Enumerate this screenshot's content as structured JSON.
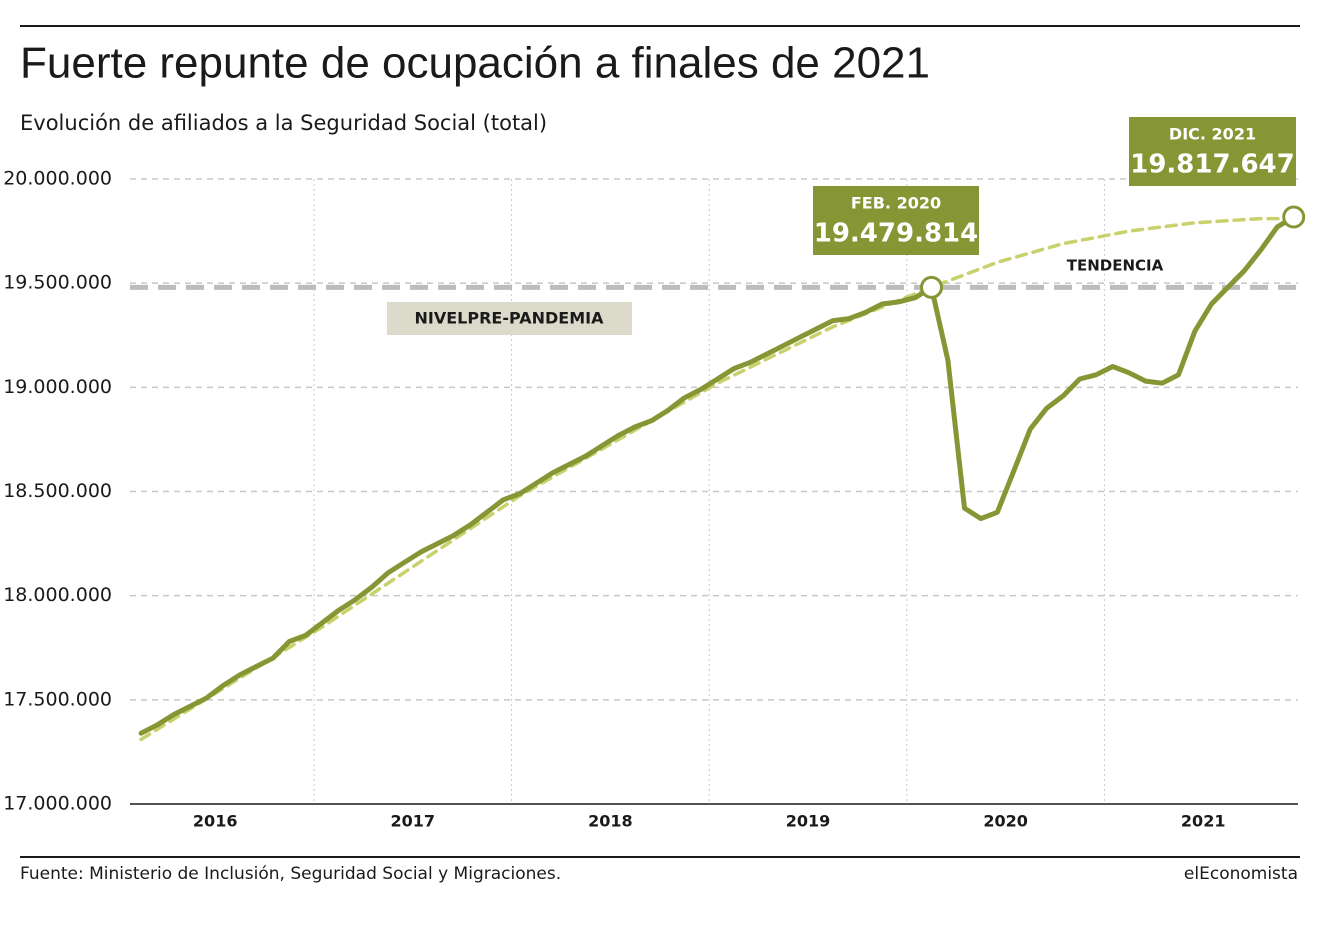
{
  "chart_data": {
    "type": "line",
    "title": "Fuerte repunte de ocupación a finales de 2021",
    "subtitle": "Evolución de afiliados a la Seguridad Social (total)",
    "source": "Fuente: Ministerio de Inclusión, Seguridad Social y Migraciones.",
    "brand": "elEconomista",
    "xlim": [
      2016,
      2022
    ],
    "xticks": [
      {
        "value": 2016.5,
        "label": "2016"
      },
      {
        "value": 2017.5,
        "label": "2017"
      },
      {
        "value": 2018.5,
        "label": "2018"
      },
      {
        "value": 2019.5,
        "label": "2019"
      },
      {
        "value": 2020.5,
        "label": "2020"
      },
      {
        "value": 2021.5,
        "label": "2021"
      }
    ],
    "ylim": [
      17000000,
      20000000
    ],
    "yticks": [
      {
        "value": 17000000,
        "label": "17.000.000"
      },
      {
        "value": 17500000,
        "label": "17.500.000"
      },
      {
        "value": 18000000,
        "label": "18.000.000"
      },
      {
        "value": 18500000,
        "label": "18.500.000"
      },
      {
        "value": 19000000,
        "label": "19.000.000"
      },
      {
        "value": 19500000,
        "label": "19.500.000"
      },
      {
        "value": 20000000,
        "label": "20.000.000"
      }
    ],
    "grid": true,
    "series": [
      {
        "name": "Afiliados",
        "color": "#879634",
        "x": [
          2016.125,
          2016.208,
          2016.292,
          2016.375,
          2016.458,
          2016.542,
          2016.625,
          2016.708,
          2016.792,
          2016.875,
          2016.958,
          2017.042,
          2017.125,
          2017.208,
          2017.292,
          2017.375,
          2017.458,
          2017.542,
          2017.625,
          2017.708,
          2017.792,
          2017.875,
          2017.958,
          2018.042,
          2018.125,
          2018.208,
          2018.292,
          2018.375,
          2018.458,
          2018.542,
          2018.625,
          2018.708,
          2018.792,
          2018.875,
          2018.958,
          2019.042,
          2019.125,
          2019.208,
          2019.292,
          2019.375,
          2019.458,
          2019.542,
          2019.625,
          2019.708,
          2019.792,
          2019.875,
          2019.958,
          2020.042,
          2020.125,
          2020.208,
          2020.292,
          2020.375,
          2020.458,
          2020.542,
          2020.625,
          2020.708,
          2020.792,
          2020.875,
          2020.958,
          2021.042,
          2021.125,
          2021.208,
          2021.292,
          2021.375,
          2021.458,
          2021.542,
          2021.625,
          2021.708,
          2021.792,
          2021.875,
          2021.958
        ],
        "values": [
          17340000,
          17380000,
          17430000,
          17470000,
          17510000,
          17570000,
          17620000,
          17660000,
          17700000,
          17780000,
          17810000,
          17870000,
          17930000,
          17980000,
          18040000,
          18110000,
          18160000,
          18210000,
          18250000,
          18290000,
          18340000,
          18400000,
          18460000,
          18490000,
          18540000,
          18590000,
          18630000,
          18670000,
          18720000,
          18770000,
          18810000,
          18840000,
          18890000,
          18950000,
          18990000,
          19040000,
          19090000,
          19120000,
          19160000,
          19200000,
          19240000,
          19280000,
          19320000,
          19330000,
          19360000,
          19400000,
          19410000,
          19430000,
          19479814,
          19130000,
          18420000,
          18370000,
          18400000,
          18600000,
          18800000,
          18900000,
          18960000,
          19040000,
          19060000,
          19100000,
          19070000,
          19030000,
          19020000,
          19060000,
          19270000,
          19400000,
          19480000,
          19560000,
          19660000,
          19770000,
          19817647
        ]
      },
      {
        "name": "TENDENCIA",
        "color": "#c9d16c",
        "dashed": true,
        "x": [
          2016.125,
          2017.042,
          2018.042,
          2019.042,
          2019.625,
          2020.125,
          2020.458,
          2020.792,
          2021.125,
          2021.458,
          2021.792,
          2021.958
        ],
        "values": [
          17310000,
          17850000,
          18480000,
          19020000,
          19290000,
          19480000,
          19600000,
          19690000,
          19750000,
          19790000,
          19810000,
          19810000
        ]
      }
    ],
    "reference_line": {
      "value": 19479814,
      "label": "NIVELPRE-PANDEMIA",
      "color": "#bcbcbc"
    },
    "annotations": [
      {
        "label": "FEB. 2020",
        "x": 2020.125,
        "value": 19479814,
        "value_label": "19.479.814"
      },
      {
        "label": "DIC. 2021",
        "x": 2021.958,
        "value": 19817647,
        "value_label": "19.817.647"
      }
    ]
  }
}
